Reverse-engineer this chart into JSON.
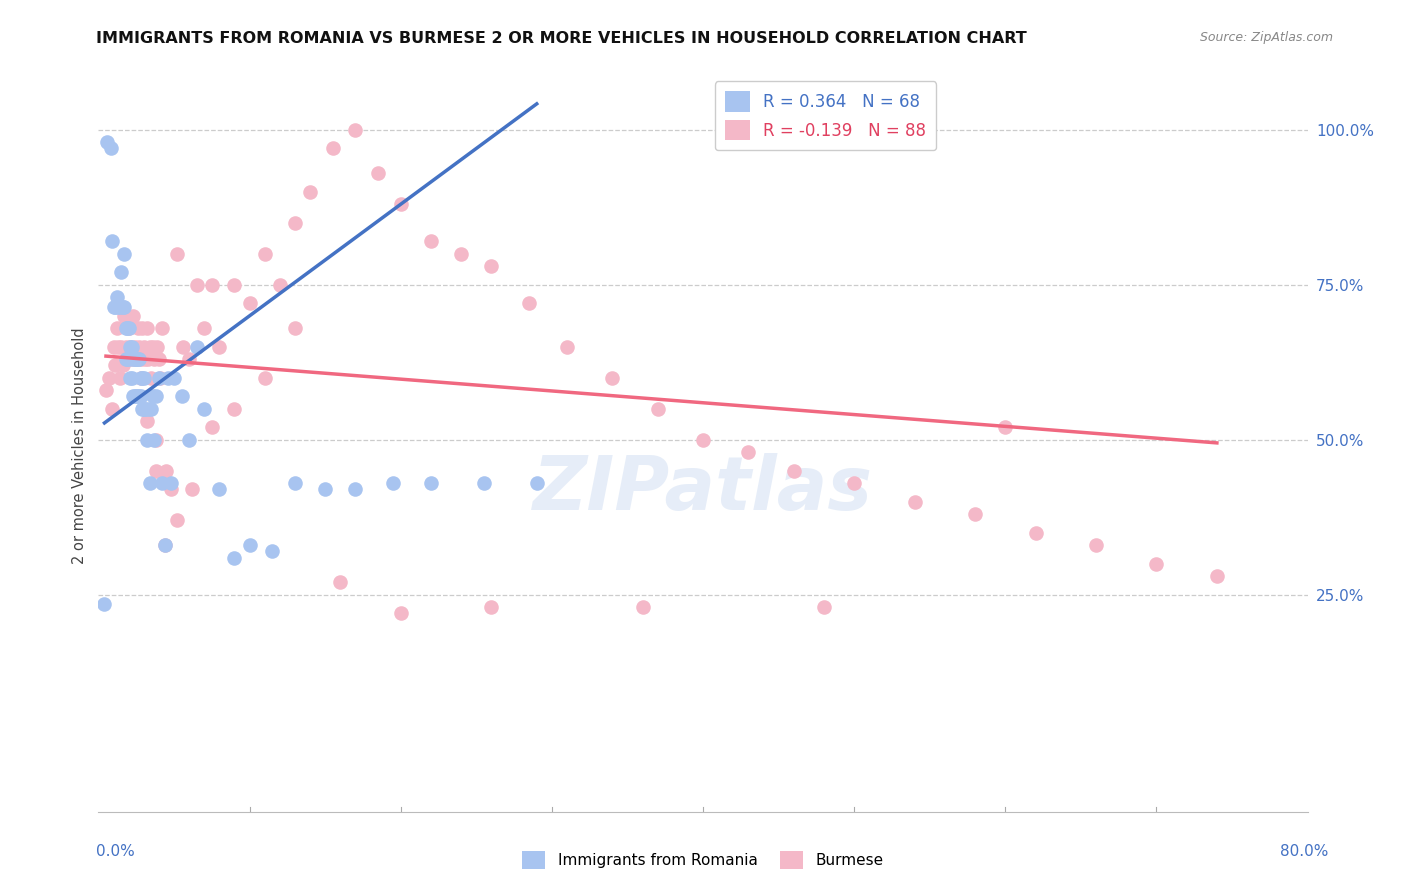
{
  "title": "IMMIGRANTS FROM ROMANIA VS BURMESE 2 OR MORE VEHICLES IN HOUSEHOLD CORRELATION CHART",
  "source": "Source: ZipAtlas.com",
  "ylabel": "2 or more Vehicles in Household",
  "ytick_values": [
    0.25,
    0.5,
    0.75,
    1.0
  ],
  "ytick_labels": [
    "25.0%",
    "50.0%",
    "75.0%",
    "100.0%"
  ],
  "xmin": 0.0,
  "xmax": 0.8,
  "ymin": -0.1,
  "ymax": 1.08,
  "legend_romania": "Immigrants from Romania",
  "legend_burmese": "Burmese",
  "R_romania": 0.364,
  "N_romania": 68,
  "R_burmese": -0.139,
  "N_burmese": 88,
  "color_romania": "#a8c4f0",
  "color_burmese": "#f4b8c8",
  "color_romania_line": "#4472c4",
  "color_burmese_line": "#f06880",
  "romania_x": [
    0.004,
    0.006,
    0.008,
    0.009,
    0.01,
    0.011,
    0.012,
    0.013,
    0.014,
    0.015,
    0.016,
    0.017,
    0.017,
    0.018,
    0.018,
    0.019,
    0.019,
    0.02,
    0.02,
    0.021,
    0.021,
    0.022,
    0.022,
    0.023,
    0.023,
    0.024,
    0.024,
    0.025,
    0.025,
    0.026,
    0.026,
    0.027,
    0.027,
    0.028,
    0.028,
    0.029,
    0.029,
    0.03,
    0.03,
    0.031,
    0.032,
    0.033,
    0.034,
    0.035,
    0.036,
    0.037,
    0.038,
    0.04,
    0.042,
    0.044,
    0.046,
    0.048,
    0.05,
    0.055,
    0.06,
    0.065,
    0.07,
    0.08,
    0.09,
    0.1,
    0.115,
    0.13,
    0.15,
    0.17,
    0.195,
    0.22,
    0.255,
    0.29
  ],
  "romania_y": [
    0.235,
    0.98,
    0.97,
    0.82,
    0.715,
    0.715,
    0.73,
    0.715,
    0.715,
    0.77,
    0.715,
    0.8,
    0.715,
    0.63,
    0.68,
    0.63,
    0.68,
    0.63,
    0.68,
    0.6,
    0.65,
    0.6,
    0.65,
    0.57,
    0.63,
    0.57,
    0.63,
    0.57,
    0.63,
    0.57,
    0.63,
    0.57,
    0.63,
    0.57,
    0.6,
    0.55,
    0.6,
    0.55,
    0.6,
    0.55,
    0.5,
    0.55,
    0.43,
    0.55,
    0.57,
    0.5,
    0.57,
    0.6,
    0.43,
    0.33,
    0.6,
    0.43,
    0.6,
    0.57,
    0.5,
    0.65,
    0.55,
    0.42,
    0.31,
    0.33,
    0.32,
    0.43,
    0.42,
    0.42,
    0.43,
    0.43,
    0.43,
    0.43
  ],
  "burmese_x": [
    0.005,
    0.007,
    0.009,
    0.01,
    0.011,
    0.012,
    0.013,
    0.014,
    0.015,
    0.016,
    0.017,
    0.018,
    0.019,
    0.02,
    0.021,
    0.022,
    0.023,
    0.024,
    0.025,
    0.026,
    0.027,
    0.028,
    0.029,
    0.03,
    0.031,
    0.032,
    0.033,
    0.034,
    0.035,
    0.036,
    0.037,
    0.038,
    0.039,
    0.04,
    0.041,
    0.042,
    0.045,
    0.048,
    0.052,
    0.056,
    0.06,
    0.065,
    0.07,
    0.075,
    0.08,
    0.09,
    0.1,
    0.11,
    0.12,
    0.13,
    0.14,
    0.155,
    0.17,
    0.185,
    0.2,
    0.22,
    0.24,
    0.26,
    0.285,
    0.31,
    0.34,
    0.37,
    0.4,
    0.43,
    0.46,
    0.5,
    0.54,
    0.58,
    0.62,
    0.66,
    0.7,
    0.74,
    0.6,
    0.48,
    0.36,
    0.26,
    0.2,
    0.16,
    0.13,
    0.11,
    0.09,
    0.075,
    0.062,
    0.052,
    0.044,
    0.038,
    0.032,
    0.028
  ],
  "burmese_y": [
    0.58,
    0.6,
    0.55,
    0.65,
    0.62,
    0.68,
    0.65,
    0.6,
    0.65,
    0.62,
    0.7,
    0.65,
    0.63,
    0.68,
    0.65,
    0.63,
    0.7,
    0.65,
    0.63,
    0.68,
    0.65,
    0.63,
    0.68,
    0.65,
    0.63,
    0.68,
    0.63,
    0.65,
    0.6,
    0.65,
    0.63,
    0.45,
    0.65,
    0.63,
    0.6,
    0.68,
    0.45,
    0.42,
    0.8,
    0.65,
    0.63,
    0.75,
    0.68,
    0.75,
    0.65,
    0.75,
    0.72,
    0.8,
    0.75,
    0.85,
    0.9,
    0.97,
    1.0,
    0.93,
    0.88,
    0.82,
    0.8,
    0.78,
    0.72,
    0.65,
    0.6,
    0.55,
    0.5,
    0.48,
    0.45,
    0.43,
    0.4,
    0.38,
    0.35,
    0.33,
    0.3,
    0.28,
    0.52,
    0.23,
    0.23,
    0.23,
    0.22,
    0.27,
    0.68,
    0.6,
    0.55,
    0.52,
    0.42,
    0.37,
    0.33,
    0.5,
    0.53,
    0.6
  ],
  "romania_line_x": [
    0.004,
    0.29
  ],
  "romania_line_y_intercept": 0.52,
  "romania_line_slope": 1.8,
  "burmese_line_x": [
    0.005,
    0.74
  ],
  "burmese_line_y_at_start": 0.635,
  "burmese_line_y_at_end": 0.495
}
